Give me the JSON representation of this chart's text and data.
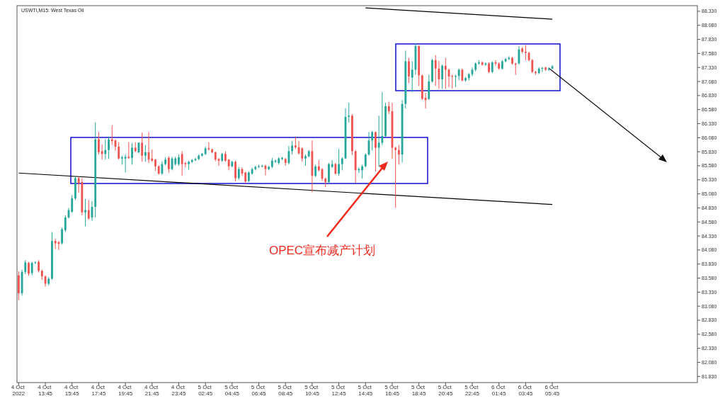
{
  "chart_data": {
    "type": "candlestick",
    "title": "USWTI,M15: West Texas Oil",
    "categories": [
      "4 Oct 2022",
      null,
      null,
      null,
      null,
      null,
      null,
      null,
      "4 Oct 13:45",
      null,
      null,
      null,
      null,
      null,
      null,
      null,
      "4 Oct 15:45",
      null,
      null,
      null,
      null,
      null,
      null,
      null,
      "4 Oct 17:45",
      null,
      null,
      null,
      null,
      null,
      null,
      null,
      "4 Oct 19:45",
      null,
      null,
      null,
      null,
      null,
      null,
      null,
      "4 Oct 21:45",
      null,
      null,
      null,
      null,
      null,
      null,
      null,
      "4 Oct 23:45",
      null,
      null,
      null,
      null,
      null,
      null,
      null,
      "5 Oct 02:45",
      null,
      null,
      null,
      null,
      null,
      null,
      null,
      "5 Oct 04:45",
      null,
      null,
      null,
      null,
      null,
      null,
      null,
      "5 Oct 06:45",
      null,
      null,
      null,
      null,
      null,
      null,
      null,
      "5 Oct 08:45",
      null,
      null,
      null,
      null,
      null,
      null,
      null,
      "5 Oct 10:45",
      null,
      null,
      null,
      null,
      null,
      null,
      null,
      "5 Oct 12:45",
      null,
      null,
      null,
      null,
      null,
      null,
      null,
      "5 Oct 14:45",
      null,
      null,
      null,
      null,
      null,
      null,
      null,
      "5 Oct 16:45",
      null,
      null,
      null,
      null,
      null,
      null,
      null,
      "5 Oct 18:45",
      null,
      null,
      null,
      null,
      null,
      null,
      null,
      "5 Oct 20:45",
      null,
      null,
      null,
      null,
      null,
      null,
      null,
      "5 Oct 22:45",
      null,
      null,
      null,
      null,
      null,
      null,
      null,
      "6 Oct 01:45",
      null,
      null,
      null,
      null,
      null,
      null,
      null,
      "6 Oct 03:45",
      null,
      null,
      null,
      null,
      null,
      null,
      null,
      "6 Oct 05:45",
      null,
      null,
      null,
      null,
      null,
      null,
      null,
      null,
      null,
      null,
      null,
      null,
      null,
      null,
      null,
      null,
      null,
      null,
      null,
      null,
      null,
      null,
      null,
      null,
      null,
      null,
      null,
      null,
      null,
      null,
      null,
      null,
      null,
      null,
      null,
      null,
      null,
      null,
      null,
      null,
      null,
      null,
      null
    ],
    "ohlc": [
      [
        83.63,
        83.7,
        83.19,
        83.31
      ],
      [
        83.31,
        83.73,
        83.27,
        83.69
      ],
      [
        83.69,
        83.9,
        83.65,
        83.86
      ],
      [
        83.85,
        83.87,
        83.62,
        83.66
      ],
      [
        83.67,
        83.87,
        83.63,
        83.85
      ],
      [
        83.85,
        83.88,
        83.83,
        83.86
      ],
      [
        83.87,
        83.9,
        83.68,
        83.71
      ],
      [
        83.71,
        83.73,
        83.55,
        83.61
      ],
      [
        83.61,
        83.63,
        83.43,
        83.48
      ],
      [
        83.48,
        83.6,
        83.45,
        83.57
      ],
      [
        83.57,
        84.4,
        83.55,
        84.24
      ],
      [
        84.24,
        84.28,
        84.1,
        84.2
      ],
      [
        84.22,
        84.24,
        84.08,
        84.19
      ],
      [
        84.2,
        84.48,
        84.18,
        84.45
      ],
      [
        84.43,
        84.7,
        84.4,
        84.66
      ],
      [
        84.66,
        84.83,
        84.64,
        84.79
      ],
      [
        84.76,
        85.06,
        84.74,
        85.0
      ],
      [
        85.0,
        85.39,
        84.97,
        85.36
      ],
      [
        85.36,
        85.39,
        85.1,
        85.27
      ],
      [
        85.29,
        85.36,
        84.7,
        84.75
      ],
      [
        84.75,
        84.99,
        84.5,
        84.79
      ],
      [
        84.79,
        84.97,
        84.62,
        84.64
      ],
      [
        84.66,
        84.95,
        84.6,
        84.85
      ],
      [
        84.85,
        86.35,
        84.66,
        86.05
      ],
      [
        86.05,
        86.18,
        85.78,
        85.82
      ],
      [
        85.84,
        85.96,
        85.69,
        85.79
      ],
      [
        85.79,
        86.05,
        85.69,
        85.86
      ],
      [
        85.86,
        86.1,
        85.7,
        86.05
      ],
      [
        86.05,
        86.3,
        85.95,
        86.02
      ],
      [
        86.03,
        86.05,
        85.85,
        85.92
      ],
      [
        85.92,
        86.0,
        85.69,
        85.71
      ],
      [
        85.71,
        85.76,
        85.6,
        85.73
      ],
      [
        85.71,
        85.78,
        85.46,
        85.74
      ],
      [
        85.74,
        86.0,
        85.7,
        85.72
      ],
      [
        85.72,
        85.98,
        85.6,
        85.9
      ],
      [
        85.9,
        86.0,
        85.82,
        85.84
      ],
      [
        85.82,
        86.0,
        85.8,
        85.99
      ],
      [
        85.99,
        86.17,
        85.65,
        85.76
      ],
      [
        85.76,
        85.95,
        85.65,
        85.82
      ],
      [
        85.82,
        86.18,
        85.63,
        85.69
      ],
      [
        85.71,
        85.87,
        85.65,
        85.67
      ],
      [
        85.69,
        85.7,
        85.49,
        85.57
      ],
      [
        85.57,
        85.59,
        85.42,
        85.44
      ],
      [
        85.44,
        85.66,
        85.42,
        85.61
      ],
      [
        85.61,
        85.73,
        85.59,
        85.69
      ],
      [
        85.72,
        85.75,
        85.45,
        85.52
      ],
      [
        85.52,
        85.74,
        85.5,
        85.71
      ],
      [
        85.61,
        85.74,
        85.58,
        85.71
      ],
      [
        85.61,
        85.78,
        85.58,
        85.73
      ],
      [
        85.79,
        85.84,
        85.4,
        85.61
      ],
      [
        85.63,
        85.65,
        85.55,
        85.61
      ],
      [
        85.61,
        85.67,
        85.51,
        85.65
      ],
      [
        85.65,
        85.7,
        85.63,
        85.68
      ],
      [
        85.68,
        85.72,
        85.66,
        85.7
      ],
      [
        85.7,
        85.78,
        85.68,
        85.76
      ],
      [
        85.76,
        85.81,
        85.74,
        85.79
      ],
      [
        85.79,
        85.92,
        85.77,
        85.89
      ],
      [
        85.89,
        86.0,
        85.85,
        85.87
      ],
      [
        85.87,
        85.89,
        85.8,
        85.82
      ],
      [
        85.82,
        85.83,
        85.66,
        85.69
      ],
      [
        85.7,
        85.72,
        85.58,
        85.67
      ],
      [
        85.67,
        85.81,
        85.65,
        85.79
      ],
      [
        85.79,
        85.84,
        85.65,
        85.67
      ],
      [
        85.69,
        85.7,
        85.5,
        85.57
      ],
      [
        85.57,
        85.67,
        85.55,
        85.65
      ],
      [
        85.65,
        85.67,
        85.3,
        85.36
      ],
      [
        85.36,
        85.56,
        85.33,
        85.52
      ],
      [
        85.52,
        85.55,
        85.4,
        85.44
      ],
      [
        85.46,
        85.47,
        85.27,
        85.3
      ],
      [
        85.31,
        85.48,
        85.29,
        85.46
      ],
      [
        85.44,
        85.55,
        85.42,
        85.52
      ],
      [
        85.52,
        85.58,
        85.5,
        85.56
      ],
      [
        85.56,
        85.6,
        85.54,
        85.57
      ],
      [
        85.57,
        85.6,
        85.55,
        85.58
      ],
      [
        85.58,
        85.6,
        85.41,
        85.52
      ],
      [
        85.52,
        85.58,
        85.5,
        85.56
      ],
      [
        85.56,
        85.72,
        85.54,
        85.67
      ],
      [
        85.65,
        85.69,
        85.63,
        85.67
      ],
      [
        85.63,
        85.73,
        85.6,
        85.71
      ],
      [
        85.7,
        85.74,
        85.68,
        85.72
      ],
      [
        85.7,
        85.72,
        85.58,
        85.63
      ],
      [
        85.63,
        85.93,
        85.6,
        85.84
      ],
      [
        85.84,
        86.02,
        85.78,
        85.94
      ],
      [
        85.94,
        86.1,
        85.88,
        85.91
      ],
      [
        85.91,
        86.02,
        85.78,
        85.8
      ],
      [
        85.89,
        85.91,
        85.65,
        85.71
      ],
      [
        85.71,
        85.78,
        85.58,
        85.75
      ],
      [
        85.75,
        85.86,
        85.73,
        85.84
      ],
      [
        85.84,
        86.03,
        85.11,
        85.4
      ],
      [
        85.4,
        85.6,
        85.38,
        85.57
      ],
      [
        85.57,
        85.68,
        85.48,
        85.5
      ],
      [
        85.52,
        85.54,
        85.31,
        85.35
      ],
      [
        85.35,
        85.37,
        85.2,
        85.29
      ],
      [
        85.29,
        85.63,
        85.27,
        85.61
      ],
      [
        85.56,
        85.68,
        85.54,
        85.61
      ],
      [
        85.61,
        85.63,
        85.42,
        85.44
      ],
      [
        85.44,
        85.88,
        85.4,
        85.61
      ],
      [
        85.61,
        85.73,
        85.5,
        85.71
      ],
      [
        85.71,
        86.6,
        85.7,
        86.45
      ],
      [
        86.45,
        86.7,
        86.35,
        86.47
      ],
      [
        86.47,
        86.5,
        85.77,
        85.84
      ],
      [
        85.84,
        85.86,
        85.27,
        85.5
      ],
      [
        85.5,
        85.55,
        85.45,
        85.52
      ],
      [
        85.5,
        85.6,
        85.35,
        85.57
      ],
      [
        85.57,
        85.8,
        85.55,
        85.78
      ],
      [
        85.78,
        86.18,
        85.76,
        86.03
      ],
      [
        86.03,
        86.2,
        85.85,
        86.18
      ],
      [
        86.18,
        86.19,
        85.48,
        85.9
      ],
      [
        85.9,
        86.47,
        85.56,
        85.99
      ],
      [
        85.99,
        86.89,
        85.95,
        86.11
      ],
      [
        86.11,
        86.7,
        86.09,
        86.64
      ],
      [
        86.64,
        86.72,
        86.5,
        86.55
      ],
      [
        86.55,
        86.7,
        85.7,
        85.9
      ],
      [
        85.9,
        85.92,
        84.83,
        85.86
      ],
      [
        85.86,
        85.95,
        85.6,
        85.78
      ],
      [
        85.78,
        86.75,
        85.64,
        86.68
      ],
      [
        86.68,
        87.63,
        86.6,
        87.44
      ],
      [
        87.44,
        87.5,
        87.05,
        87.17
      ],
      [
        87.15,
        87.44,
        86.89,
        87.29
      ],
      [
        87.29,
        87.76,
        87.2,
        87.71
      ],
      [
        87.71,
        87.72,
        87.0,
        87.19
      ],
      [
        87.19,
        87.2,
        86.75,
        86.77
      ],
      [
        86.79,
        86.88,
        86.6,
        86.75
      ],
      [
        86.77,
        87.2,
        86.75,
        87.08
      ],
      [
        87.08,
        87.48,
        87.06,
        87.46
      ],
      [
        87.46,
        87.55,
        87.0,
        87.31
      ],
      [
        87.31,
        87.45,
        86.95,
        87.12
      ],
      [
        87.12,
        87.38,
        86.95,
        87.36
      ],
      [
        87.36,
        87.5,
        86.95,
        87.29
      ],
      [
        87.29,
        87.31,
        86.98,
        87.17
      ],
      [
        87.18,
        87.2,
        86.95,
        87.17
      ],
      [
        87.17,
        87.2,
        86.98,
        87.18
      ],
      [
        87.18,
        87.31,
        87.1,
        87.29
      ],
      [
        87.29,
        87.31,
        87.08,
        87.1
      ],
      [
        87.1,
        87.16,
        87.08,
        87.14
      ],
      [
        87.14,
        87.23,
        87.1,
        87.21
      ],
      [
        87.21,
        87.33,
        87.17,
        87.29
      ],
      [
        87.29,
        87.42,
        87.26,
        87.4
      ],
      [
        87.4,
        87.46,
        87.38,
        87.42
      ],
      [
        87.42,
        87.44,
        87.36,
        87.38
      ],
      [
        87.38,
        87.42,
        87.36,
        87.4
      ],
      [
        87.4,
        87.42,
        87.23,
        87.25
      ],
      [
        87.25,
        87.44,
        87.23,
        87.42
      ],
      [
        87.42,
        87.46,
        87.36,
        87.4
      ],
      [
        87.4,
        87.42,
        87.29,
        87.31
      ],
      [
        87.31,
        87.46,
        87.29,
        87.44
      ],
      [
        87.44,
        87.5,
        87.42,
        87.48
      ],
      [
        87.48,
        87.53,
        87.46,
        87.5
      ],
      [
        87.5,
        87.52,
        87.38,
        87.4
      ],
      [
        87.4,
        87.41,
        87.2,
        87.38
      ],
      [
        87.4,
        87.71,
        87.38,
        87.65
      ],
      [
        87.67,
        87.69,
        87.58,
        87.61
      ],
      [
        87.61,
        87.73,
        87.46,
        87.59
      ],
      [
        87.59,
        87.61,
        87.44,
        87.46
      ],
      [
        87.46,
        87.48,
        87.23,
        87.25
      ],
      [
        87.25,
        87.27,
        87.2,
        87.23
      ],
      [
        87.23,
        87.33,
        87.21,
        87.31
      ],
      [
        87.31,
        87.34,
        87.25,
        87.32
      ],
      [
        87.33,
        87.34,
        87.27,
        87.29
      ],
      [
        87.29,
        87.33,
        87.27,
        87.31
      ],
      [
        87.31,
        87.37,
        87.3,
        87.35
      ],
      null,
      null,
      null,
      null,
      null,
      null,
      null,
      null,
      null,
      null,
      null,
      null,
      null,
      null,
      null,
      null,
      null,
      null,
      null,
      null,
      null,
      null,
      null,
      null,
      null,
      null,
      null,
      null,
      null,
      null,
      null,
      null,
      null,
      null,
      null,
      null,
      null,
      null,
      null,
      null,
      null,
      null,
      null
    ],
    "colors": [
      "#ef5350",
      "#26a69a",
      "#26a69a",
      "#ef5350",
      "#26a69a",
      "#26a69a",
      "#ef5350",
      "#ef5350",
      "#ef5350",
      "#26a69a",
      "#26a69a",
      "#ef5350",
      "#ef5350",
      "#26a69a",
      "#26a69a",
      "#26a69a",
      "#26a69a",
      "#26a69a",
      "#ef5350",
      "#ef5350",
      "#26a69a",
      "#ef5350",
      "#26a69a",
      "#26a69a",
      "#ef5350",
      "#ef5350",
      "#26a69a",
      "#26a69a",
      "#ef5350",
      "#ef5350",
      "#ef5350",
      "#26a69a",
      "#26a69a",
      "#ef5350",
      "#26a69a",
      "#ef5350",
      "#26a69a",
      "#ef5350",
      "#26a69a",
      "#ef5350",
      "#ef5350",
      "#ef5350",
      "#ef5350",
      "#26a69a",
      "#26a69a",
      "#ef5350",
      "#26a69a",
      "#26a69a",
      "#26a69a",
      "#ef5350",
      "#ef5350",
      "#26a69a",
      "#26a69a",
      "#26a69a",
      "#26a69a",
      "#26a69a",
      "#26a69a",
      "#ef5350",
      "#ef5350",
      "#ef5350",
      "#ef5350",
      "#26a69a",
      "#ef5350",
      "#ef5350",
      "#26a69a",
      "#ef5350",
      "#26a69a",
      "#ef5350",
      "#ef5350",
      "#26a69a",
      "#26a69a",
      "#26a69a",
      "#26a69a",
      "#26a69a",
      "#ef5350",
      "#26a69a",
      "#26a69a",
      "#26a69a",
      "#26a69a",
      "#26a69a",
      "#ef5350",
      "#26a69a",
      "#26a69a",
      "#ef5350",
      "#ef5350",
      "#ef5350",
      "#26a69a",
      "#26a69a",
      "#ef5350",
      "#26a69a",
      "#ef5350",
      "#ef5350",
      "#ef5350",
      "#26a69a",
      "#26a69a",
      "#ef5350",
      "#26a69a",
      "#26a69a",
      "#26a69a",
      "#26a69a",
      "#ef5350",
      "#ef5350",
      "#26a69a",
      "#26a69a",
      "#26a69a",
      "#26a69a",
      "#26a69a",
      "#ef5350",
      "#26a69a",
      "#26a69a",
      "#26a69a",
      "#ef5350",
      "#ef5350",
      "#ef5350",
      "#ef5350",
      "#26a69a",
      "#26a69a",
      "#ef5350",
      "#26a69a",
      "#26a69a",
      "#ef5350",
      "#ef5350",
      "#ef5350",
      "#26a69a",
      "#26a69a",
      "#ef5350",
      "#ef5350",
      "#26a69a",
      "#ef5350",
      "#ef5350",
      "#ef5350",
      "#26a69a",
      "#26a69a",
      "#ef5350",
      "#26a69a",
      "#26a69a",
      "#26a69a",
      "#26a69a",
      "#26a69a",
      "#ef5350",
      "#26a69a",
      "#ef5350",
      "#26a69a",
      "#ef5350",
      "#ef5350",
      "#26a69a",
      "#26a69a",
      "#26a69a",
      "#ef5350",
      "#ef5350",
      "#26a69a",
      "#ef5350",
      "#ef5350",
      "#ef5350",
      "#ef5350",
      "#ef5350",
      "#26a69a",
      "#26a69a",
      "#ef5350",
      "#26a69a",
      "#26a69a",
      null,
      null,
      null,
      null,
      null,
      null,
      null,
      null,
      null,
      null,
      null,
      null,
      null,
      null,
      null,
      null,
      null,
      null,
      null,
      null,
      null,
      null,
      null,
      null,
      null,
      null,
      null,
      null,
      null,
      null,
      null,
      null,
      null,
      null,
      null,
      null,
      null,
      null,
      null,
      null,
      null,
      null,
      null
    ],
    "series": [
      {
        "type": "line",
        "color": "#000000",
        "x": [
          "5 Oct 14:45",
          "6 Oct 05:45"
        ],
        "values": [
          88.39,
          88.19
        ]
      },
      {
        "type": "line",
        "color": "#000000",
        "x": [
          "4 Oct 2022",
          "6 Oct 05:45"
        ],
        "values": [
          85.45,
          84.89
        ]
      }
    ],
    "annotations": [
      "OPEC宣布减产计划"
    ],
    "ylim": [
      81.72,
      88.43
    ],
    "yticks": [
      {
        "value": 81.83,
        "label": "81.830"
      },
      {
        "value": 82.08,
        "label": "82.080"
      },
      {
        "value": 82.33,
        "label": "82.330"
      },
      {
        "value": 82.58,
        "label": "82.580"
      },
      {
        "value": 82.83,
        "label": "82.830"
      },
      {
        "value": 83.08,
        "label": "83.080"
      },
      {
        "value": 83.33,
        "label": "83.330"
      },
      {
        "value": 83.58,
        "label": "83.580"
      },
      {
        "value": 83.83,
        "label": "83.830"
      },
      {
        "value": 84.08,
        "label": "84.080"
      },
      {
        "value": 84.33,
        "label": "84.330"
      },
      {
        "value": 84.58,
        "label": "84.580"
      },
      {
        "value": 84.83,
        "label": "84.830"
      },
      {
        "value": 85.08,
        "label": "85.080"
      },
      {
        "value": 85.33,
        "label": "85.330"
      },
      {
        "value": 85.58,
        "label": "85.580"
      },
      {
        "value": 85.83,
        "label": "85.830"
      },
      {
        "value": 86.08,
        "label": "86.080"
      },
      {
        "value": 86.33,
        "label": "86.330"
      },
      {
        "value": 86.58,
        "label": "86.580"
      },
      {
        "value": 86.83,
        "label": "86.830"
      },
      {
        "value": 87.08,
        "label": "87.080"
      },
      {
        "value": 87.33,
        "label": "87.330"
      },
      {
        "value": 87.58,
        "label": "87.580"
      },
      {
        "value": 87.83,
        "label": "87.830"
      },
      {
        "value": 88.08,
        "label": "88.080"
      },
      {
        "value": 88.33,
        "label": "88.330"
      }
    ]
  }
}
